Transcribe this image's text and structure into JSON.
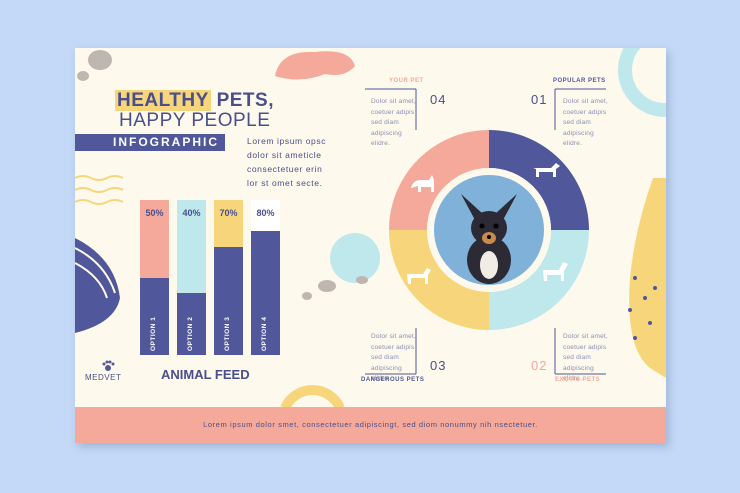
{
  "title": {
    "highlight": "HEALTHY",
    "rest": " PETS,",
    "line2": "HAPPY PEOPLE",
    "band": "INFOGRAPHIC"
  },
  "intro": "Lorem ipsum opsc dolor sit ameticle consectetuer erin lor st omet secte.",
  "chart_data": {
    "type": "bar",
    "categories": [
      "OPTION 1",
      "OPTION 2",
      "OPTION 3",
      "OPTION 4"
    ],
    "values": [
      50,
      40,
      70,
      80
    ],
    "value_labels": [
      "50%",
      "40%",
      "70%",
      "80%"
    ],
    "ylim": [
      0,
      100
    ],
    "title": "ANIMAL FEED",
    "colors": [
      "#f4a99a",
      "#bfe8ec",
      "#f7d57a",
      "#ffffff"
    ]
  },
  "brand": "MEDVET",
  "cycle": {
    "your_pet": {
      "label": "YOUR PET",
      "num": "04",
      "text": "Dolor sit amet, coetuer adipis sed diam adipiscing elidre."
    },
    "popular_pets": {
      "label": "POPULAR PETS",
      "num": "01",
      "text": "Dolor sit amet, coetuer adipis sed diam adipiscing elidre."
    },
    "dangerous_pets": {
      "label": "DANGEROUS PETS",
      "num": "03",
      "text": "Dolor sit amet, coetuer adipis sed diam adipiscing elidre."
    },
    "exotic_pets": {
      "label": "EXOTIC PETS",
      "num": "02",
      "text": "Dolor sit amet, coetuer adipis sed diam adipiscing elidre."
    }
  },
  "footer": "Lorem ipsum dolor smet, consectetuer adipiscingt, sed diom nonummy nih nsectetuer.",
  "colors": {
    "navy": "#50579a",
    "pink": "#f4a99a",
    "yellow": "#f7d57a",
    "cyan": "#bfe8ec",
    "background": "#c3d9f7"
  }
}
